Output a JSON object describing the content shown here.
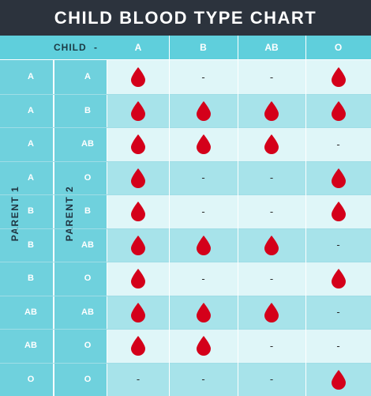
{
  "title": "CHILD BLOOD TYPE CHART",
  "header": {
    "child_label": "CHILD",
    "child_arrow": "-"
  },
  "axis": {
    "parent1_label": "PARENT 1",
    "parent2_label": "PARENT 2"
  },
  "colors": {
    "title_bg": "#2c333d",
    "header_bg": "#5fcfdc",
    "parent_bg": "#6fd1dd",
    "row_light": "#dff6f8",
    "row_dark": "#a7e3ea",
    "drop": "#d4001a"
  },
  "marks": {
    "possible": "blood-drop-icon",
    "not_possible": "-"
  },
  "chart_data": {
    "type": "table",
    "title": "CHILD BLOOD TYPE CHART",
    "columns": [
      "A",
      "B",
      "AB",
      "O"
    ],
    "rows": [
      {
        "parent1": "A",
        "parent2": "A",
        "cells": [
          true,
          false,
          false,
          true
        ]
      },
      {
        "parent1": "A",
        "parent2": "B",
        "cells": [
          true,
          true,
          true,
          true
        ]
      },
      {
        "parent1": "A",
        "parent2": "AB",
        "cells": [
          true,
          true,
          true,
          false
        ]
      },
      {
        "parent1": "A",
        "parent2": "O",
        "cells": [
          true,
          false,
          false,
          true
        ]
      },
      {
        "parent1": "B",
        "parent2": "B",
        "cells": [
          true,
          false,
          false,
          true
        ]
      },
      {
        "parent1": "B",
        "parent2": "AB",
        "cells": [
          true,
          true,
          true,
          false
        ]
      },
      {
        "parent1": "B",
        "parent2": "O",
        "cells": [
          true,
          false,
          false,
          true
        ]
      },
      {
        "parent1": "AB",
        "parent2": "AB",
        "cells": [
          true,
          true,
          true,
          false
        ]
      },
      {
        "parent1": "AB",
        "parent2": "O",
        "cells": [
          true,
          true,
          false,
          false
        ]
      },
      {
        "parent1": "O",
        "parent2": "O",
        "cells": [
          false,
          false,
          false,
          true
        ]
      }
    ]
  }
}
